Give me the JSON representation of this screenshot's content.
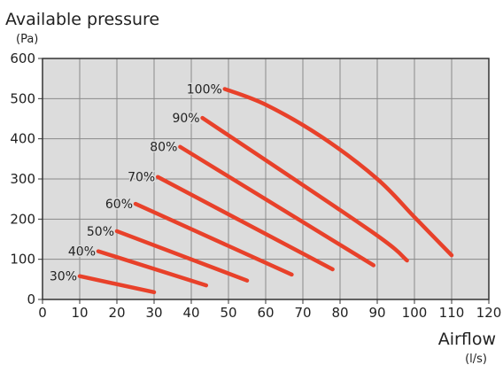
{
  "chart_data": {
    "type": "line",
    "title": "Available pressure",
    "ylabel_unit": "(Pa)",
    "xlabel": "Airflow",
    "xlabel_unit": "(l/s)",
    "xlim": [
      0,
      120
    ],
    "ylim": [
      0,
      600
    ],
    "xticks": [
      0,
      10,
      20,
      30,
      40,
      50,
      60,
      70,
      80,
      90,
      100,
      110,
      120
    ],
    "yticks": [
      0,
      100,
      200,
      300,
      400,
      500,
      600
    ],
    "grid": true,
    "colors": {
      "series": "#e8412a",
      "plot_bg": "#dcdcdc",
      "grid": "#8a8a8a",
      "axis": "#333333"
    },
    "series": [
      {
        "name": "30%",
        "points": [
          [
            10,
            58
          ],
          [
            30,
            18
          ]
        ]
      },
      {
        "name": "40%",
        "points": [
          [
            15,
            120
          ],
          [
            44,
            35
          ]
        ]
      },
      {
        "name": "50%",
        "points": [
          [
            20,
            170
          ],
          [
            55,
            47
          ]
        ]
      },
      {
        "name": "60%",
        "points": [
          [
            25,
            238
          ],
          [
            67,
            62
          ]
        ]
      },
      {
        "name": "70%",
        "points": [
          [
            31,
            305
          ],
          [
            78,
            75
          ]
        ]
      },
      {
        "name": "80%",
        "points": [
          [
            37,
            380
          ],
          [
            89,
            85
          ]
        ]
      },
      {
        "name": "90%",
        "points": [
          [
            43,
            452
          ],
          [
            88,
            172
          ],
          [
            98,
            97
          ]
        ]
      },
      {
        "name": "100%",
        "points": [
          [
            49,
            524
          ],
          [
            60,
            485
          ],
          [
            75,
            405
          ],
          [
            90,
            300
          ],
          [
            100,
            205
          ],
          [
            110,
            110
          ]
        ]
      }
    ]
  }
}
